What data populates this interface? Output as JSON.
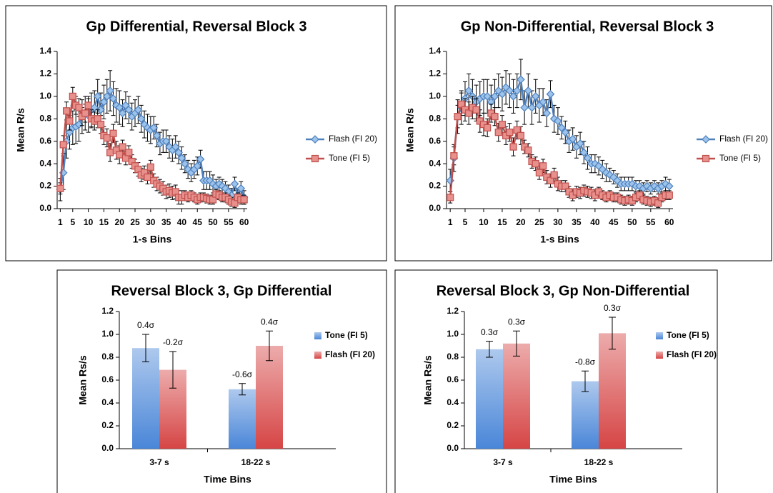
{
  "chart_data": [
    {
      "type": "line",
      "title": "Gp Differential, Reversal Block 3",
      "xlabel": "1-s Bins",
      "ylabel": "Mean R/s",
      "x": [
        1,
        2,
        3,
        4,
        5,
        6,
        7,
        8,
        9,
        10,
        11,
        12,
        13,
        14,
        15,
        16,
        17,
        18,
        19,
        20,
        21,
        22,
        23,
        24,
        25,
        26,
        27,
        28,
        29,
        30,
        31,
        32,
        33,
        34,
        35,
        36,
        37,
        38,
        39,
        40,
        41,
        42,
        43,
        44,
        45,
        46,
        47,
        48,
        49,
        50,
        51,
        52,
        53,
        54,
        55,
        56,
        57,
        58,
        59,
        60
      ],
      "xlim": [
        0,
        61
      ],
      "xticks": [
        1,
        5,
        10,
        15,
        20,
        25,
        30,
        35,
        40,
        45,
        50,
        55,
        60
      ],
      "ylim": [
        0,
        1.4
      ],
      "yticks": [
        {
          "value": 0,
          "label": "0.0"
        },
        0.2,
        0.4,
        0.6,
        0.8,
        {
          "value": 1,
          "label": "1.0"
        },
        1.2,
        1.4
      ],
      "series": [
        {
          "name": "Flash (FI 20)",
          "color": "#4f81bd",
          "marker": "diamond",
          "values": [
            0.17,
            0.32,
            0.6,
            0.68,
            0.72,
            0.73,
            0.75,
            0.82,
            0.85,
            0.83,
            0.88,
            0.9,
            1.0,
            0.88,
            0.95,
            1.0,
            1.05,
            0.98,
            0.92,
            0.9,
            0.85,
            0.92,
            0.88,
            0.82,
            0.85,
            0.88,
            0.8,
            0.75,
            0.72,
            0.7,
            0.72,
            0.65,
            0.58,
            0.6,
            0.6,
            0.55,
            0.52,
            0.55,
            0.5,
            0.45,
            0.4,
            0.35,
            0.32,
            0.35,
            0.38,
            0.44,
            0.25,
            0.25,
            0.25,
            0.22,
            0.2,
            0.22,
            0.2,
            0.18,
            0.15,
            0.12,
            0.22,
            0.12,
            0.18,
            0.1
          ],
          "errors": [
            0.1,
            0.15,
            0.15,
            0.15,
            0.15,
            0.15,
            0.15,
            0.15,
            0.15,
            0.15,
            0.15,
            0.15,
            0.15,
            0.15,
            0.15,
            0.15,
            0.18,
            0.15,
            0.15,
            0.15,
            0.12,
            0.12,
            0.12,
            0.12,
            0.12,
            0.12,
            0.12,
            0.12,
            0.12,
            0.12,
            0.1,
            0.1,
            0.1,
            0.1,
            0.1,
            0.1,
            0.1,
            0.1,
            0.1,
            0.1,
            0.08,
            0.08,
            0.08,
            0.08,
            0.08,
            0.08,
            0.08,
            0.08,
            0.08,
            0.08,
            0.06,
            0.06,
            0.06,
            0.06,
            0.06,
            0.06,
            0.06,
            0.06,
            0.06,
            0.06
          ]
        },
        {
          "name": "Tone (FI 5)",
          "color": "#c0504d",
          "marker": "square",
          "values": [
            0.18,
            0.57,
            0.87,
            0.78,
            1.0,
            0.92,
            0.9,
            0.82,
            0.85,
            0.92,
            0.8,
            0.78,
            0.8,
            0.75,
            0.65,
            0.63,
            0.5,
            0.67,
            0.52,
            0.48,
            0.55,
            0.45,
            0.5,
            0.42,
            0.38,
            0.35,
            0.3,
            0.32,
            0.28,
            0.37,
            0.25,
            0.22,
            0.2,
            0.18,
            0.15,
            0.16,
            0.14,
            0.15,
            0.1,
            0.1,
            0.12,
            0.1,
            0.12,
            0.1,
            0.08,
            0.1,
            0.1,
            0.09,
            0.08,
            0.08,
            0.13,
            0.12,
            0.1,
            0.1,
            0.08,
            0.06,
            0.05,
            0.1,
            0.08,
            0.08
          ],
          "errors": [
            0.05,
            0.08,
            0.08,
            0.08,
            0.08,
            0.08,
            0.08,
            0.08,
            0.08,
            0.08,
            0.08,
            0.08,
            0.08,
            0.08,
            0.08,
            0.08,
            0.08,
            0.08,
            0.08,
            0.08,
            0.06,
            0.06,
            0.06,
            0.06,
            0.06,
            0.06,
            0.06,
            0.06,
            0.06,
            0.06,
            0.06,
            0.06,
            0.06,
            0.06,
            0.06,
            0.06,
            0.06,
            0.06,
            0.06,
            0.06,
            0.04,
            0.04,
            0.04,
            0.04,
            0.04,
            0.04,
            0.04,
            0.04,
            0.04,
            0.04,
            0.04,
            0.04,
            0.04,
            0.04,
            0.04,
            0.04,
            0.04,
            0.04,
            0.04,
            0.04
          ]
        }
      ]
    },
    {
      "type": "line",
      "title": "Gp Non-Differential, Reversal Block 3",
      "xlabel": "1-s Bins",
      "ylabel": "Mean R/s",
      "x": [
        1,
        2,
        3,
        4,
        5,
        6,
        7,
        8,
        9,
        10,
        11,
        12,
        13,
        14,
        15,
        16,
        17,
        18,
        19,
        20,
        21,
        22,
        23,
        24,
        25,
        26,
        27,
        28,
        29,
        30,
        31,
        32,
        33,
        34,
        35,
        36,
        37,
        38,
        39,
        40,
        41,
        42,
        43,
        44,
        45,
        46,
        47,
        48,
        49,
        50,
        51,
        52,
        53,
        54,
        55,
        56,
        57,
        58,
        59,
        60
      ],
      "xlim": [
        0,
        61
      ],
      "xticks": [
        1,
        5,
        10,
        15,
        20,
        25,
        30,
        35,
        40,
        45,
        50,
        55,
        60
      ],
      "ylim": [
        0,
        1.4
      ],
      "yticks": [
        {
          "value": 0,
          "label": "0.0"
        },
        0.2,
        0.4,
        0.6,
        0.8,
        {
          "value": 1,
          "label": "1.0"
        },
        1.2,
        1.4
      ],
      "series": [
        {
          "name": "Flash (FI 20)",
          "color": "#4f81bd",
          "marker": "diamond",
          "values": [
            0.25,
            0.45,
            0.82,
            0.9,
            0.98,
            1.05,
            1.0,
            0.95,
            0.98,
            1.0,
            1.0,
            0.95,
            1.0,
            1.05,
            1.02,
            1.08,
            1.05,
            1.0,
            1.05,
            1.15,
            0.9,
            1.05,
            0.9,
            1.0,
            0.92,
            0.95,
            0.85,
            1.02,
            0.8,
            0.78,
            0.72,
            0.68,
            0.6,
            0.62,
            0.55,
            0.58,
            0.5,
            0.45,
            0.4,
            0.4,
            0.38,
            0.35,
            0.32,
            0.3,
            0.28,
            0.25,
            0.22,
            0.22,
            0.22,
            0.22,
            0.2,
            0.2,
            0.18,
            0.2,
            0.18,
            0.2,
            0.18,
            0.2,
            0.22,
            0.2
          ],
          "errors": [
            0.1,
            0.12,
            0.15,
            0.15,
            0.15,
            0.15,
            0.15,
            0.15,
            0.15,
            0.15,
            0.15,
            0.15,
            0.15,
            0.15,
            0.15,
            0.15,
            0.15,
            0.15,
            0.15,
            0.18,
            0.15,
            0.15,
            0.15,
            0.15,
            0.15,
            0.12,
            0.12,
            0.12,
            0.12,
            0.12,
            0.1,
            0.1,
            0.1,
            0.1,
            0.1,
            0.1,
            0.1,
            0.1,
            0.08,
            0.08,
            0.08,
            0.08,
            0.08,
            0.06,
            0.06,
            0.06,
            0.06,
            0.06,
            0.06,
            0.06,
            0.05,
            0.05,
            0.05,
            0.05,
            0.05,
            0.05,
            0.05,
            0.05,
            0.06,
            0.06
          ]
        },
        {
          "name": "Tone (FI 5)",
          "color": "#c0504d",
          "marker": "square",
          "values": [
            0.1,
            0.47,
            0.82,
            0.93,
            0.88,
            0.85,
            0.9,
            0.88,
            0.78,
            0.75,
            0.72,
            0.85,
            0.82,
            0.68,
            0.75,
            0.65,
            0.68,
            0.55,
            0.7,
            0.65,
            0.55,
            0.52,
            0.42,
            0.4,
            0.32,
            0.38,
            0.28,
            0.25,
            0.3,
            0.22,
            0.2,
            0.2,
            0.15,
            0.12,
            0.15,
            0.14,
            0.16,
            0.15,
            0.14,
            0.12,
            0.15,
            0.12,
            0.1,
            0.12,
            0.1,
            0.1,
            0.08,
            0.07,
            0.08,
            0.07,
            0.1,
            0.12,
            0.08,
            0.07,
            0.06,
            0.07,
            0.05,
            0.1,
            0.12,
            0.12
          ],
          "errors": [
            0.05,
            0.08,
            0.1,
            0.1,
            0.1,
            0.1,
            0.1,
            0.1,
            0.1,
            0.1,
            0.08,
            0.08,
            0.08,
            0.08,
            0.08,
            0.08,
            0.08,
            0.08,
            0.08,
            0.08,
            0.06,
            0.06,
            0.06,
            0.06,
            0.06,
            0.06,
            0.06,
            0.06,
            0.06,
            0.06,
            0.05,
            0.05,
            0.05,
            0.05,
            0.05,
            0.05,
            0.05,
            0.05,
            0.05,
            0.05,
            0.04,
            0.04,
            0.04,
            0.04,
            0.04,
            0.04,
            0.04,
            0.04,
            0.04,
            0.04,
            0.04,
            0.04,
            0.04,
            0.04,
            0.04,
            0.04,
            0.04,
            0.04,
            0.04,
            0.04
          ]
        }
      ]
    },
    {
      "type": "bar",
      "title": "Reversal Block 3, Gp Differential",
      "xlabel": "Time Bins",
      "ylabel": "Mean Rs/s",
      "categories": [
        "3-7 s",
        "18-22 s"
      ],
      "ylim": [
        0,
        1.2
      ],
      "yticks": [
        {
          "value": 0,
          "label": "0.0"
        },
        0.2,
        0.4,
        0.6,
        0.8,
        {
          "value": 1,
          "label": "1.0"
        },
        1.2
      ],
      "series": [
        {
          "name": "Tone (FI 5)",
          "color": "#4a86d8",
          "values": [
            0.88,
            0.52
          ],
          "errors": [
            0.12,
            0.05
          ],
          "labels": [
            "0.4σ",
            "-0.6σ"
          ]
        },
        {
          "name": "Flash (FI 20)",
          "color": "#d64545",
          "values": [
            0.69,
            0.9
          ],
          "errors": [
            0.16,
            0.13
          ],
          "labels": [
            "-0.2σ",
            "0.4σ"
          ]
        }
      ]
    },
    {
      "type": "bar",
      "title": "Reversal Block 3, Gp Non-Differential",
      "xlabel": "Time Bins",
      "ylabel": "Mean Rs/s",
      "categories": [
        "3-7 s",
        "18-22 s"
      ],
      "ylim": [
        0,
        1.2
      ],
      "yticks": [
        {
          "value": 0,
          "label": "0.0"
        },
        0.2,
        0.4,
        0.6,
        0.8,
        {
          "value": 1,
          "label": "1.0"
        },
        1.2
      ],
      "series": [
        {
          "name": "Tone (FI 5)",
          "color": "#4a86d8",
          "values": [
            0.87,
            0.59
          ],
          "errors": [
            0.07,
            0.09
          ],
          "labels": [
            "0.3σ",
            "-0.8σ"
          ]
        },
        {
          "name": "Flash (FI 20)",
          "color": "#d64545",
          "values": [
            0.92,
            1.01
          ],
          "errors": [
            0.11,
            0.14
          ],
          "labels": [
            "0.3σ",
            "0.3σ"
          ]
        }
      ]
    }
  ]
}
